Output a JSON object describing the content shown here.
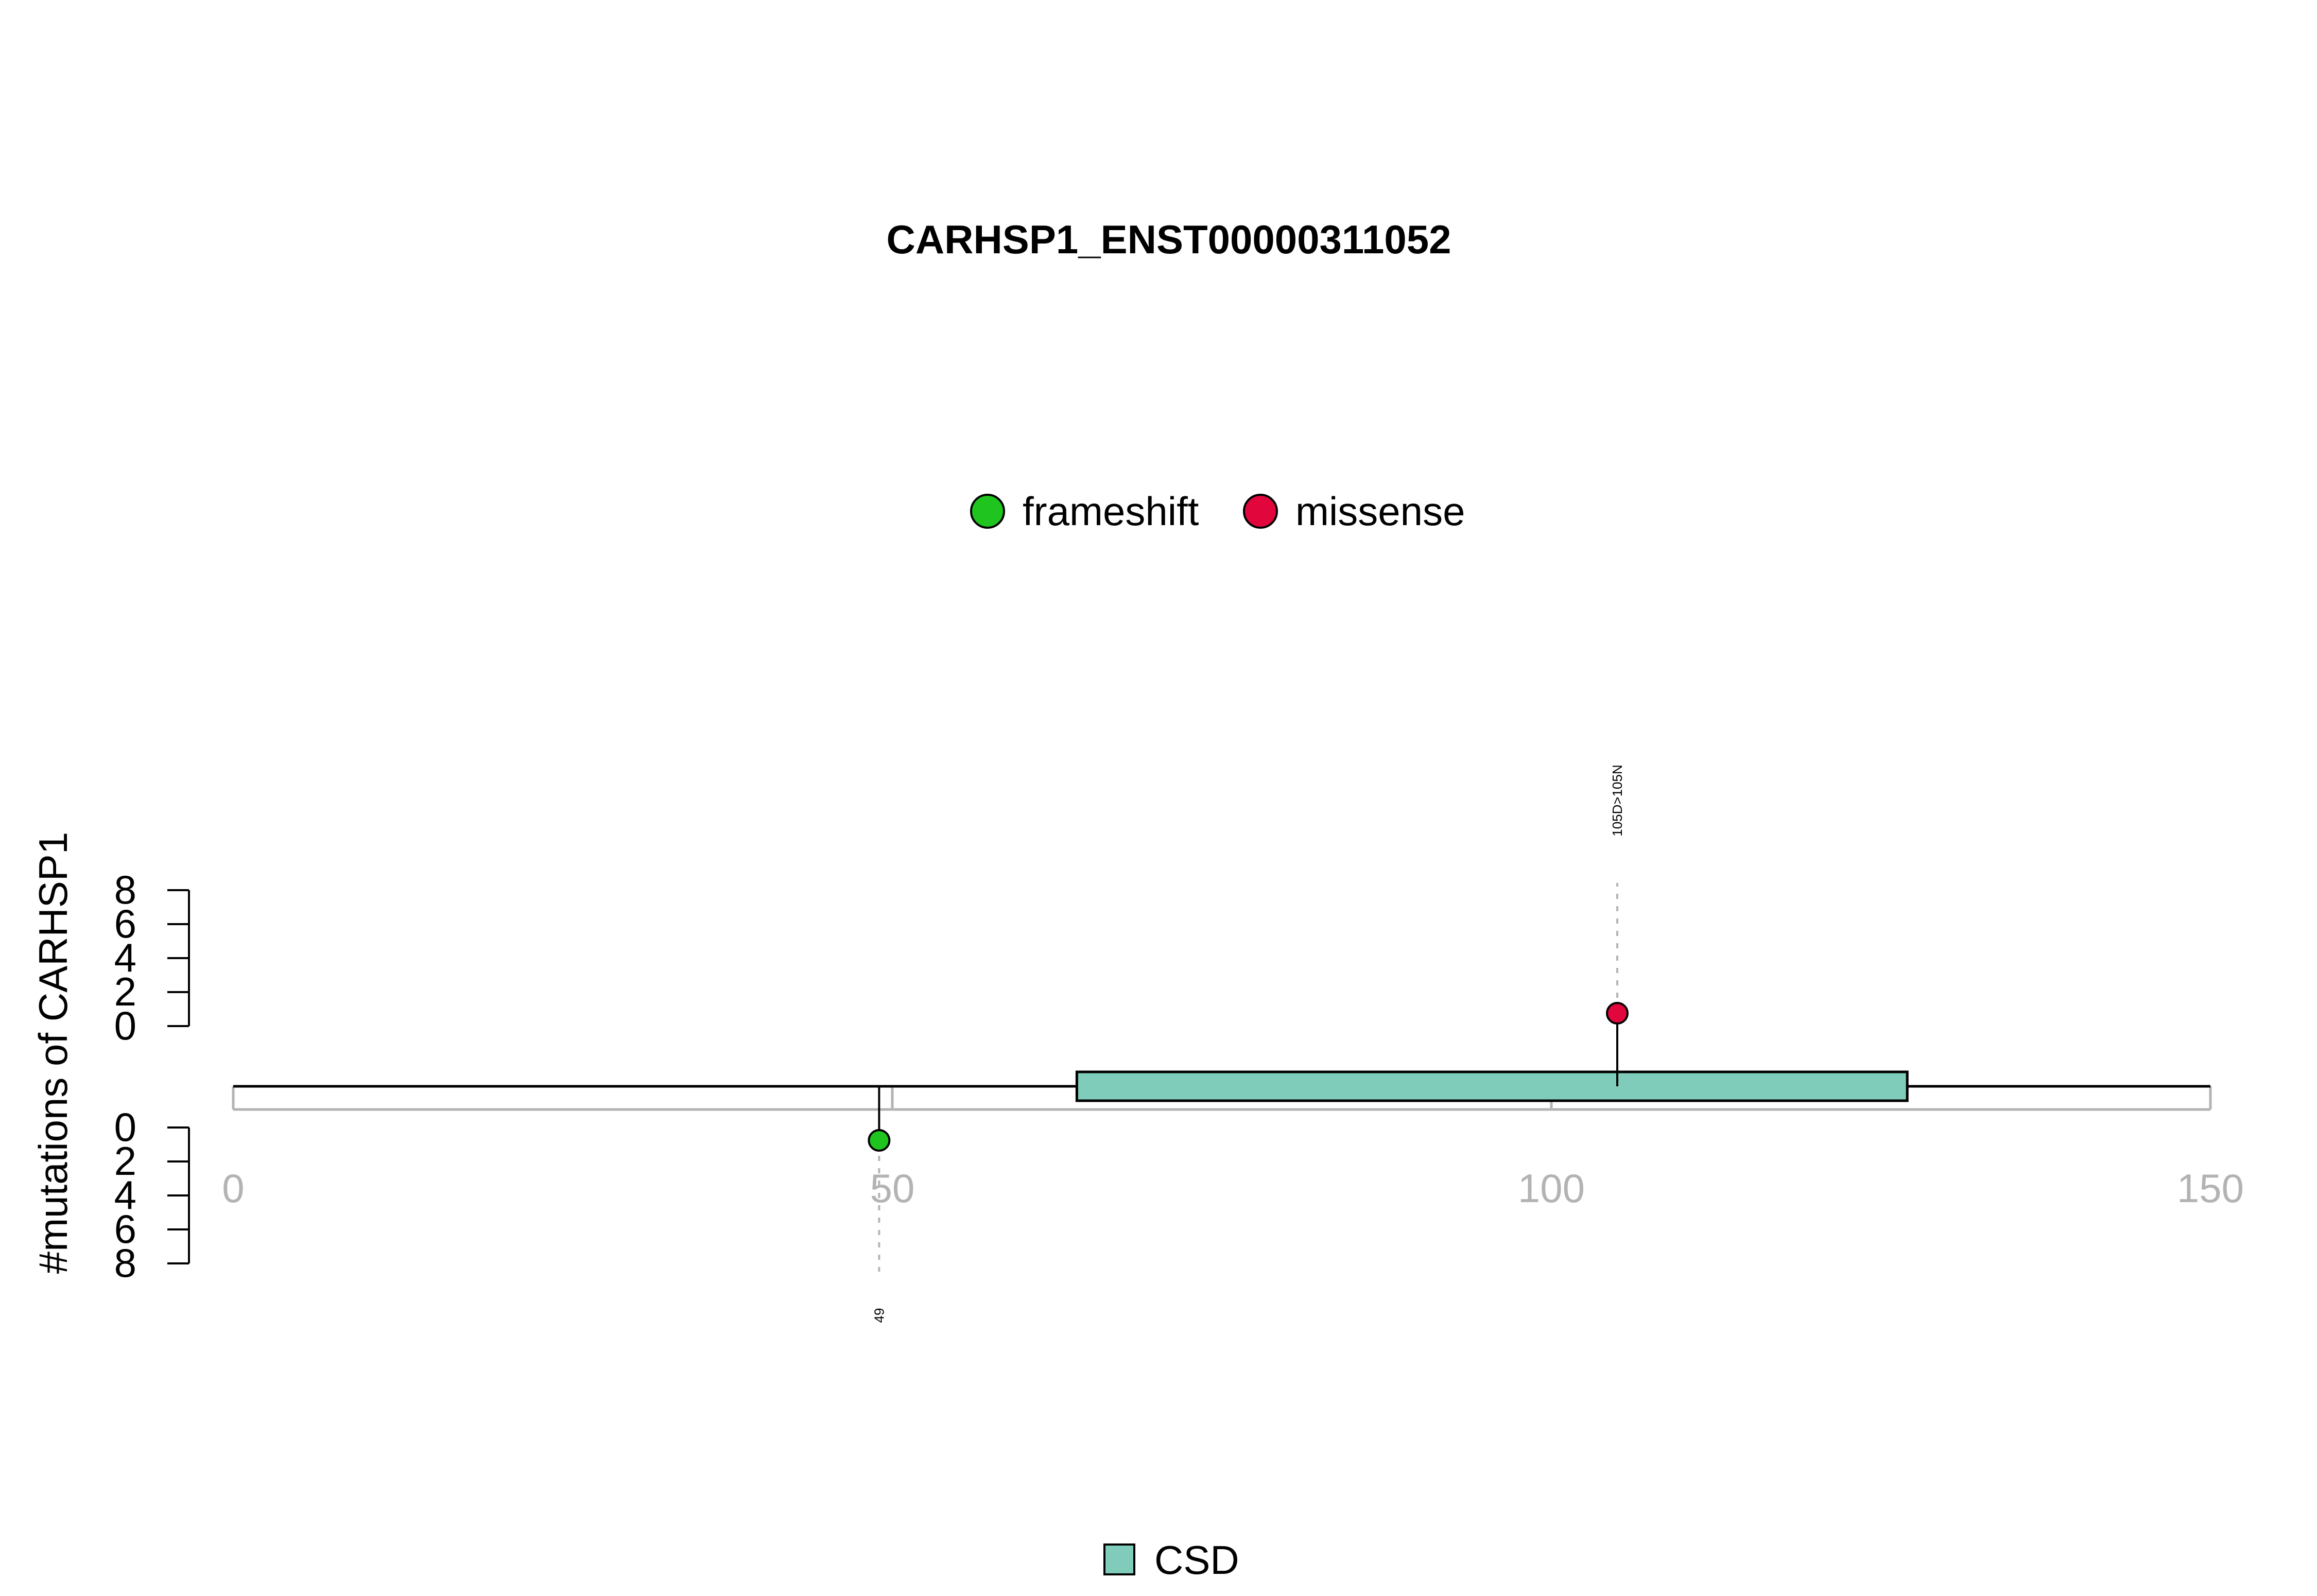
{
  "chart_data": {
    "type": "lollipop",
    "title": "CARHSP1_ENST00000311052",
    "ylabel": "#mutations of CARHSP1",
    "xlim": [
      0,
      150
    ],
    "x_ticks": [
      0,
      50,
      100,
      150
    ],
    "y_ticks": [
      0,
      2,
      4,
      6,
      8
    ],
    "protein_length": 150,
    "mutation_legend": [
      {
        "name": "frameshift",
        "color": "#1fc41f"
      },
      {
        "name": "missense",
        "color": "#e1063c"
      }
    ],
    "mutations": [
      {
        "position": 49,
        "label": "49",
        "type": "frameshift",
        "count": 1,
        "side": "bottom"
      },
      {
        "position": 105,
        "label": "105D>105N",
        "type": "missense",
        "count": 1,
        "side": "top"
      }
    ],
    "domains": [
      {
        "name": "CSD",
        "start": 64,
        "end": 127,
        "color": "#7fccbb"
      }
    ],
    "domain_legend": [
      {
        "name": "CSD",
        "color": "#7fccbb"
      }
    ]
  }
}
